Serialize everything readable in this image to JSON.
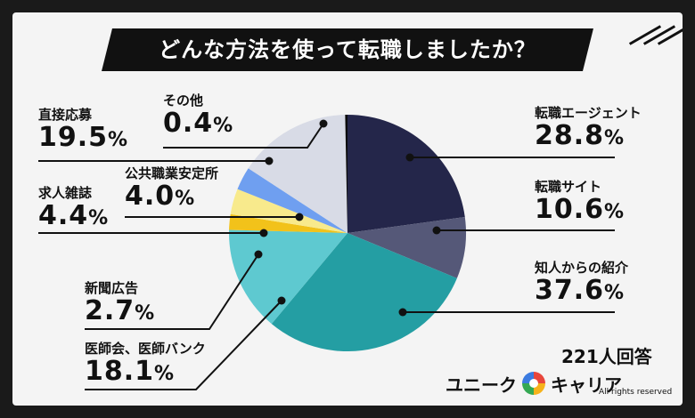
{
  "title": "どんな方法を使って転職しましたか？",
  "total_label": "221人回答",
  "logo": {
    "left": "ユニーク",
    "right": "キャリア"
  },
  "rights": "All rights reserved",
  "chart_data": {
    "type": "pie",
    "unit": "%",
    "slices": [
      {
        "name": "転職エージェント",
        "value": 28.8,
        "color": "#24264a"
      },
      {
        "name": "転職サイト",
        "value": 10.6,
        "color": "#555878"
      },
      {
        "name": "知人からの紹介",
        "value": 37.6,
        "color": "#249ea3"
      },
      {
        "name": "医師会、医師バンク",
        "value": 18.1,
        "color": "#5ec9d0"
      },
      {
        "name": "新聞広告",
        "value": 2.7,
        "color": "#f2c21a"
      },
      {
        "name": "求人雑誌",
        "value": 4.4,
        "color": "#f8ea8c"
      },
      {
        "name": "公共職業安定所",
        "value": 4.0,
        "color": "#6f9ff0"
      },
      {
        "name": "直接応募",
        "value": 19.5,
        "color": "#d8dbe6"
      },
      {
        "name": "その他",
        "value": 0.4,
        "color": "#0b0b0b"
      }
    ]
  },
  "labels": [
    {
      "name": "転職エージェント",
      "num": "28.8",
      "unit": "%"
    },
    {
      "name": "転職サイト",
      "num": "10.6",
      "unit": "%"
    },
    {
      "name": "知人からの紹介",
      "num": "37.6",
      "unit": "%"
    },
    {
      "name": "医師会、医師バンク",
      "num": "18.1",
      "unit": "%"
    },
    {
      "name": "新聞広告",
      "num": "2.7",
      "unit": "%"
    },
    {
      "name": "求人雑誌",
      "num": "4.4",
      "unit": "%"
    },
    {
      "name": "公共職業安定所",
      "num": "4.0",
      "unit": "%"
    },
    {
      "name": "直接応募",
      "num": "19.5",
      "unit": "%"
    },
    {
      "name": "その他",
      "num": "0.4",
      "unit": "%"
    }
  ]
}
